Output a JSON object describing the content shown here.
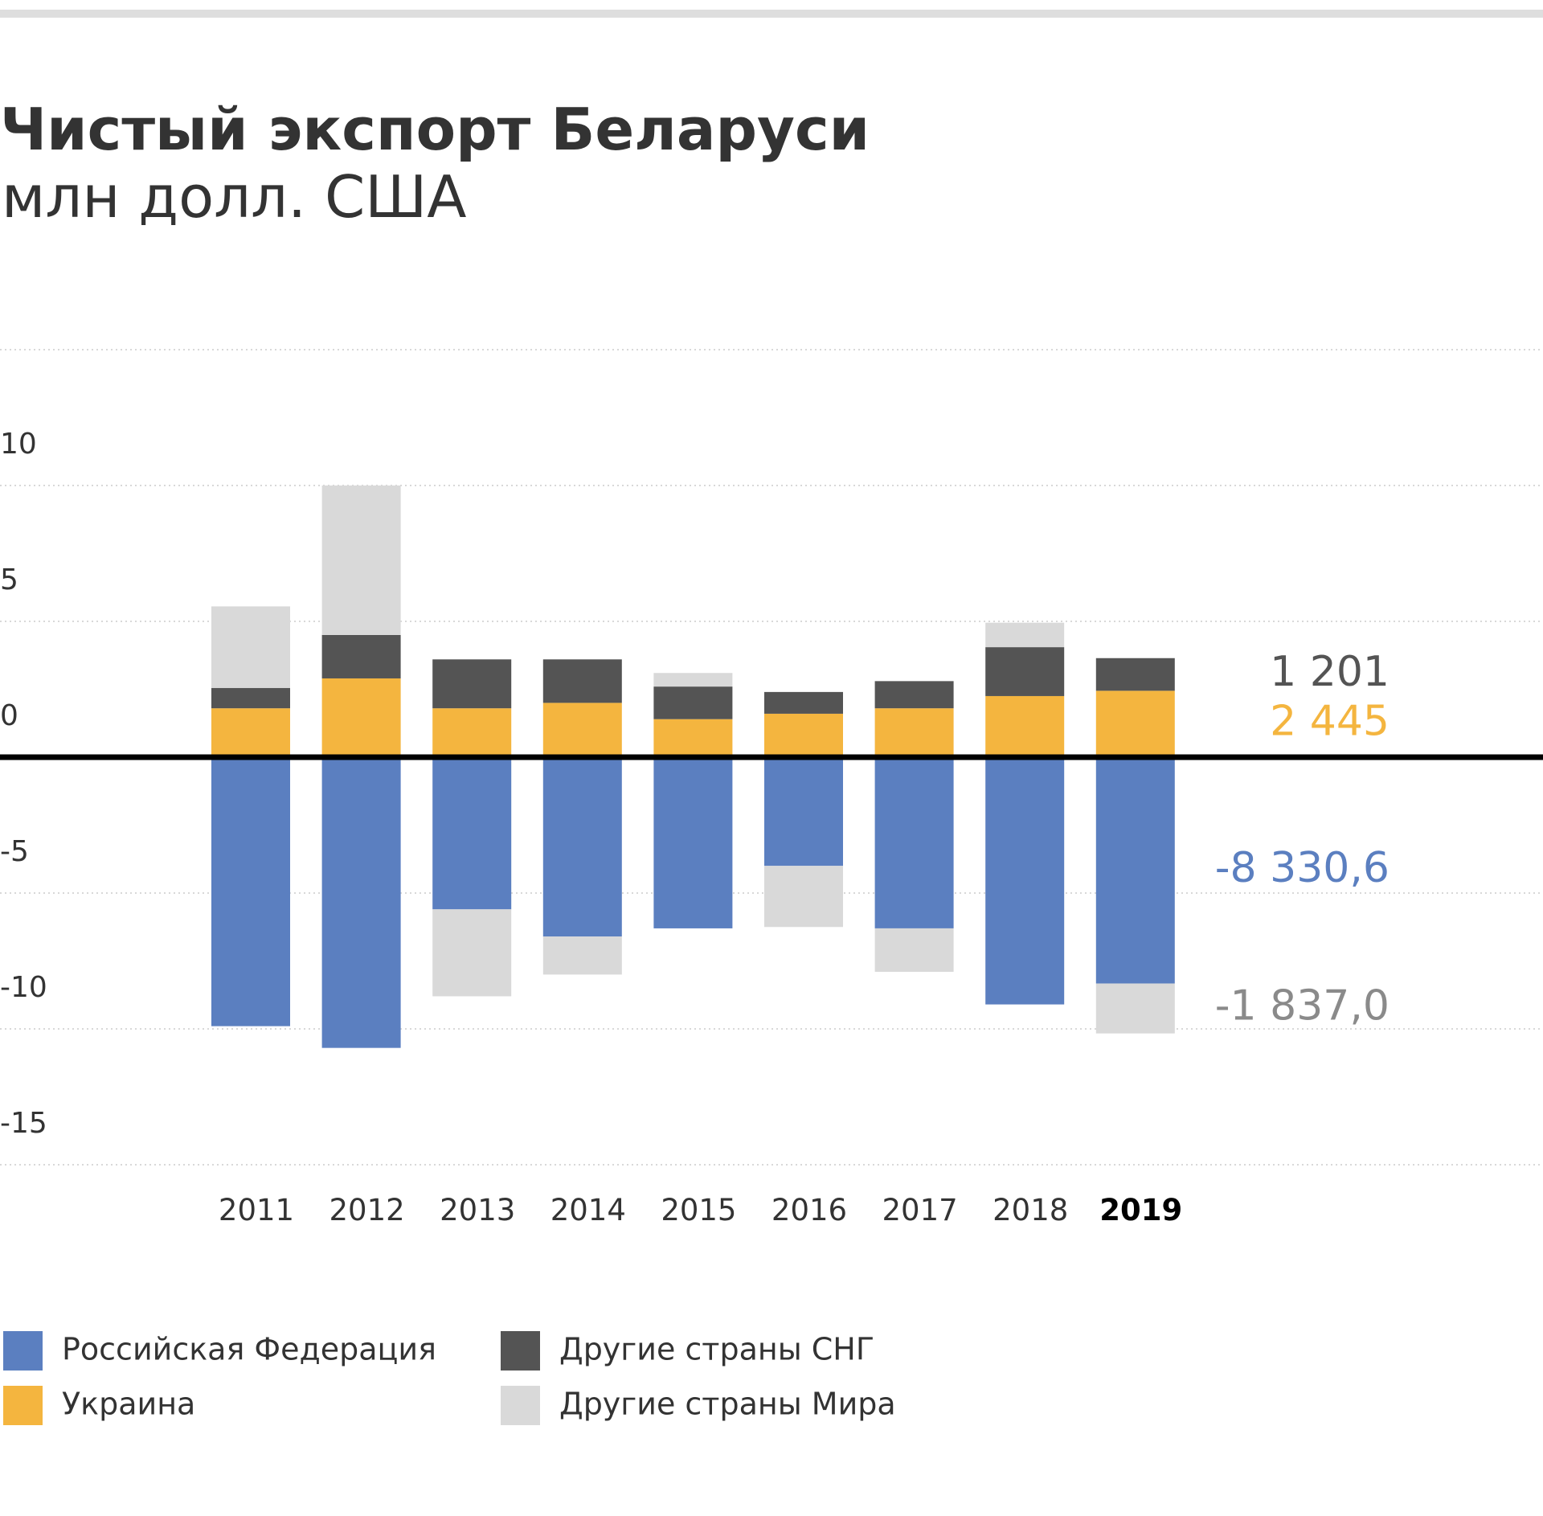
{
  "chart_data": {
    "type": "stacked_bar",
    "title": "Чистый экспорт Беларуси",
    "subtitle": "млн долл. США",
    "categories": [
      "2011",
      "2012",
      "2013",
      "2014",
      "2015",
      "2016",
      "2017",
      "2018",
      "2019"
    ],
    "series": [
      {
        "name": "Российская Федерация",
        "color": "#5b7fc0",
        "label_color": "#5b7fc0",
        "values": [
          -9.9,
          -10.7,
          -5.6,
          -6.6,
          -6.3,
          -4.0,
          -6.3,
          -9.1,
          -8.3306
        ],
        "value_labels": [
          null,
          null,
          null,
          null,
          null,
          null,
          null,
          null,
          "-8 330,6"
        ]
      },
      {
        "name": "Украина",
        "color": "#f4b53f",
        "label_color": "#f4b53f",
        "values": [
          1.8,
          2.9,
          1.8,
          2.0,
          1.4,
          1.6,
          1.8,
          2.25,
          2.445
        ],
        "value_labels": [
          null,
          null,
          null,
          null,
          null,
          null,
          null,
          null,
          "2 445"
        ]
      },
      {
        "name": "Другие страны СНГ",
        "color": "#545454",
        "label_color": "#545454",
        "values": [
          0.75,
          1.6,
          1.8,
          1.6,
          1.2,
          0.8,
          1.0,
          1.8,
          1.201
        ],
        "value_labels": [
          null,
          null,
          null,
          null,
          null,
          null,
          null,
          null,
          "1 201"
        ]
      },
      {
        "name": "Другие страны Мира",
        "color": "#d9d9d9",
        "label_color": "#8a8a8a",
        "values": [
          3.0,
          5.5,
          -3.2,
          -1.4,
          0.5,
          -2.25,
          -1.6,
          0.9,
          -1.837
        ],
        "value_labels": [
          null,
          null,
          null,
          null,
          null,
          null,
          null,
          null,
          "-1 837,0"
        ]
      }
    ],
    "ylim": [
      -15,
      15
    ],
    "yticks": [
      -15,
      -10,
      -5,
      0,
      5,
      10
    ],
    "grid": true
  }
}
